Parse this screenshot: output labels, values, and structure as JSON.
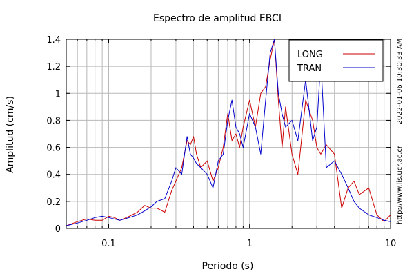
{
  "chart_data": {
    "type": "line",
    "title": "Espectro de amplitud EBCI",
    "xlabel": "Periodo (s)",
    "ylabel": "Amplitud (cm/s)",
    "x_scale": "log",
    "xlim": [
      0.05,
      10
    ],
    "ylim": [
      0,
      1.4
    ],
    "x_ticks": [
      0.1,
      1,
      10
    ],
    "x_tick_labels": [
      "0.1",
      "1",
      "10"
    ],
    "y_ticks": [
      0,
      0.2,
      0.4,
      0.6,
      0.8,
      1,
      1.2,
      1.4
    ],
    "y_tick_labels": [
      "0",
      "0.2",
      "0.4",
      "0.6",
      "0.8",
      "1",
      "1.2",
      "1.4"
    ],
    "grid": true,
    "legend_position": "top-right",
    "side_labels": {
      "timestamp": "2022-01-06 10:30:33 AM",
      "url": "http://www.lis.ucr.ac.cr"
    },
    "series": [
      {
        "name": "LONG",
        "color": "#cc0000",
        "x": [
          0.05,
          0.06,
          0.07,
          0.08,
          0.09,
          0.1,
          0.11,
          0.12,
          0.14,
          0.16,
          0.18,
          0.2,
          0.22,
          0.25,
          0.28,
          0.3,
          0.33,
          0.36,
          0.38,
          0.4,
          0.42,
          0.45,
          0.5,
          0.55,
          0.6,
          0.65,
          0.7,
          0.75,
          0.8,
          0.85,
          0.9,
          1.0,
          1.1,
          1.2,
          1.3,
          1.4,
          1.5,
          1.6,
          1.7,
          1.8,
          2.0,
          2.2,
          2.5,
          2.8,
          3.0,
          3.2,
          3.5,
          4.0,
          4.5,
          5.0,
          5.5,
          6.0,
          7.0,
          8.0,
          9.0,
          10.0
        ],
        "y": [
          0.02,
          0.05,
          0.07,
          0.06,
          0.06,
          0.09,
          0.08,
          0.06,
          0.09,
          0.12,
          0.17,
          0.15,
          0.15,
          0.12,
          0.28,
          0.35,
          0.45,
          0.65,
          0.62,
          0.68,
          0.55,
          0.45,
          0.5,
          0.35,
          0.45,
          0.6,
          0.85,
          0.65,
          0.7,
          0.6,
          0.75,
          0.95,
          0.75,
          1.0,
          1.05,
          1.25,
          1.4,
          0.95,
          0.6,
          0.9,
          0.55,
          0.4,
          0.95,
          0.8,
          0.6,
          0.55,
          0.62,
          0.55,
          0.15,
          0.3,
          0.35,
          0.25,
          0.3,
          0.1,
          0.05,
          0.1
        ]
      },
      {
        "name": "TRAN",
        "color": "#0000cc",
        "x": [
          0.05,
          0.06,
          0.07,
          0.08,
          0.09,
          0.1,
          0.11,
          0.12,
          0.14,
          0.16,
          0.18,
          0.2,
          0.22,
          0.25,
          0.28,
          0.3,
          0.33,
          0.36,
          0.38,
          0.4,
          0.42,
          0.45,
          0.5,
          0.55,
          0.6,
          0.65,
          0.7,
          0.75,
          0.8,
          0.85,
          0.9,
          1.0,
          1.1,
          1.2,
          1.3,
          1.4,
          1.5,
          1.6,
          1.7,
          1.8,
          2.0,
          2.2,
          2.5,
          2.8,
          3.0,
          3.2,
          3.5,
          4.0,
          4.5,
          5.0,
          5.5,
          6.0,
          7.0,
          8.0,
          9.0,
          10.0
        ],
        "y": [
          0.02,
          0.04,
          0.06,
          0.08,
          0.09,
          0.08,
          0.07,
          0.06,
          0.08,
          0.1,
          0.13,
          0.16,
          0.2,
          0.22,
          0.35,
          0.45,
          0.4,
          0.68,
          0.55,
          0.52,
          0.48,
          0.45,
          0.4,
          0.3,
          0.5,
          0.55,
          0.8,
          0.95,
          0.75,
          0.7,
          0.6,
          0.85,
          0.75,
          0.55,
          0.95,
          1.3,
          1.4,
          1.0,
          0.85,
          0.75,
          0.8,
          0.65,
          1.1,
          0.65,
          0.75,
          1.25,
          0.45,
          0.5,
          0.4,
          0.3,
          0.2,
          0.15,
          0.1,
          0.08,
          0.06,
          0.05
        ]
      }
    ]
  }
}
